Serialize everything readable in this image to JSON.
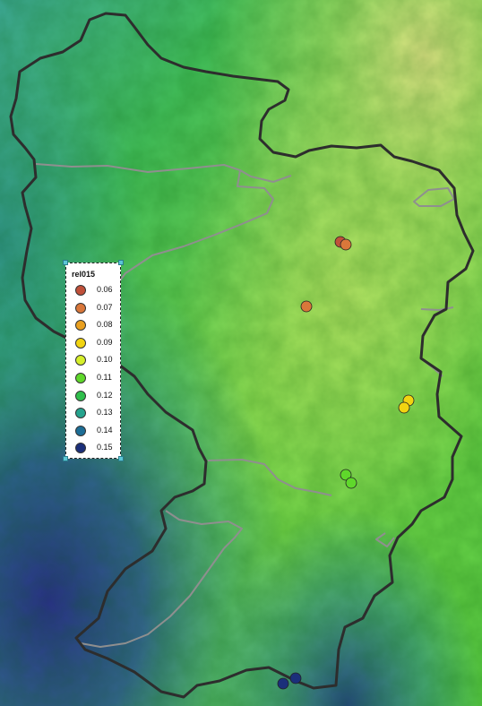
{
  "legend": {
    "title": "rel015",
    "items": [
      {
        "label": "0.06",
        "color": "#c0503a"
      },
      {
        "label": "0.07",
        "color": "#d9773a"
      },
      {
        "label": "0.08",
        "color": "#e9a020"
      },
      {
        "label": "0.09",
        "color": "#f2d411"
      },
      {
        "label": "0.10",
        "color": "#d6ef2b"
      },
      {
        "label": "0.11",
        "color": "#5fd82b"
      },
      {
        "label": "0.12",
        "color": "#2fbf4c"
      },
      {
        "label": "0.13",
        "color": "#26a38e"
      },
      {
        "label": "0.14",
        "color": "#1d6e96"
      },
      {
        "label": "0.15",
        "color": "#1b2f7a"
      }
    ]
  },
  "stations": [
    {
      "value": "0.06"
    },
    {
      "value": "0.07"
    },
    {
      "value": "0.07"
    },
    {
      "value": "0.09"
    },
    {
      "value": "0.09"
    },
    {
      "value": "0.11"
    },
    {
      "value": "0.11"
    },
    {
      "value": "0.15"
    },
    {
      "value": "0.15"
    }
  ]
}
